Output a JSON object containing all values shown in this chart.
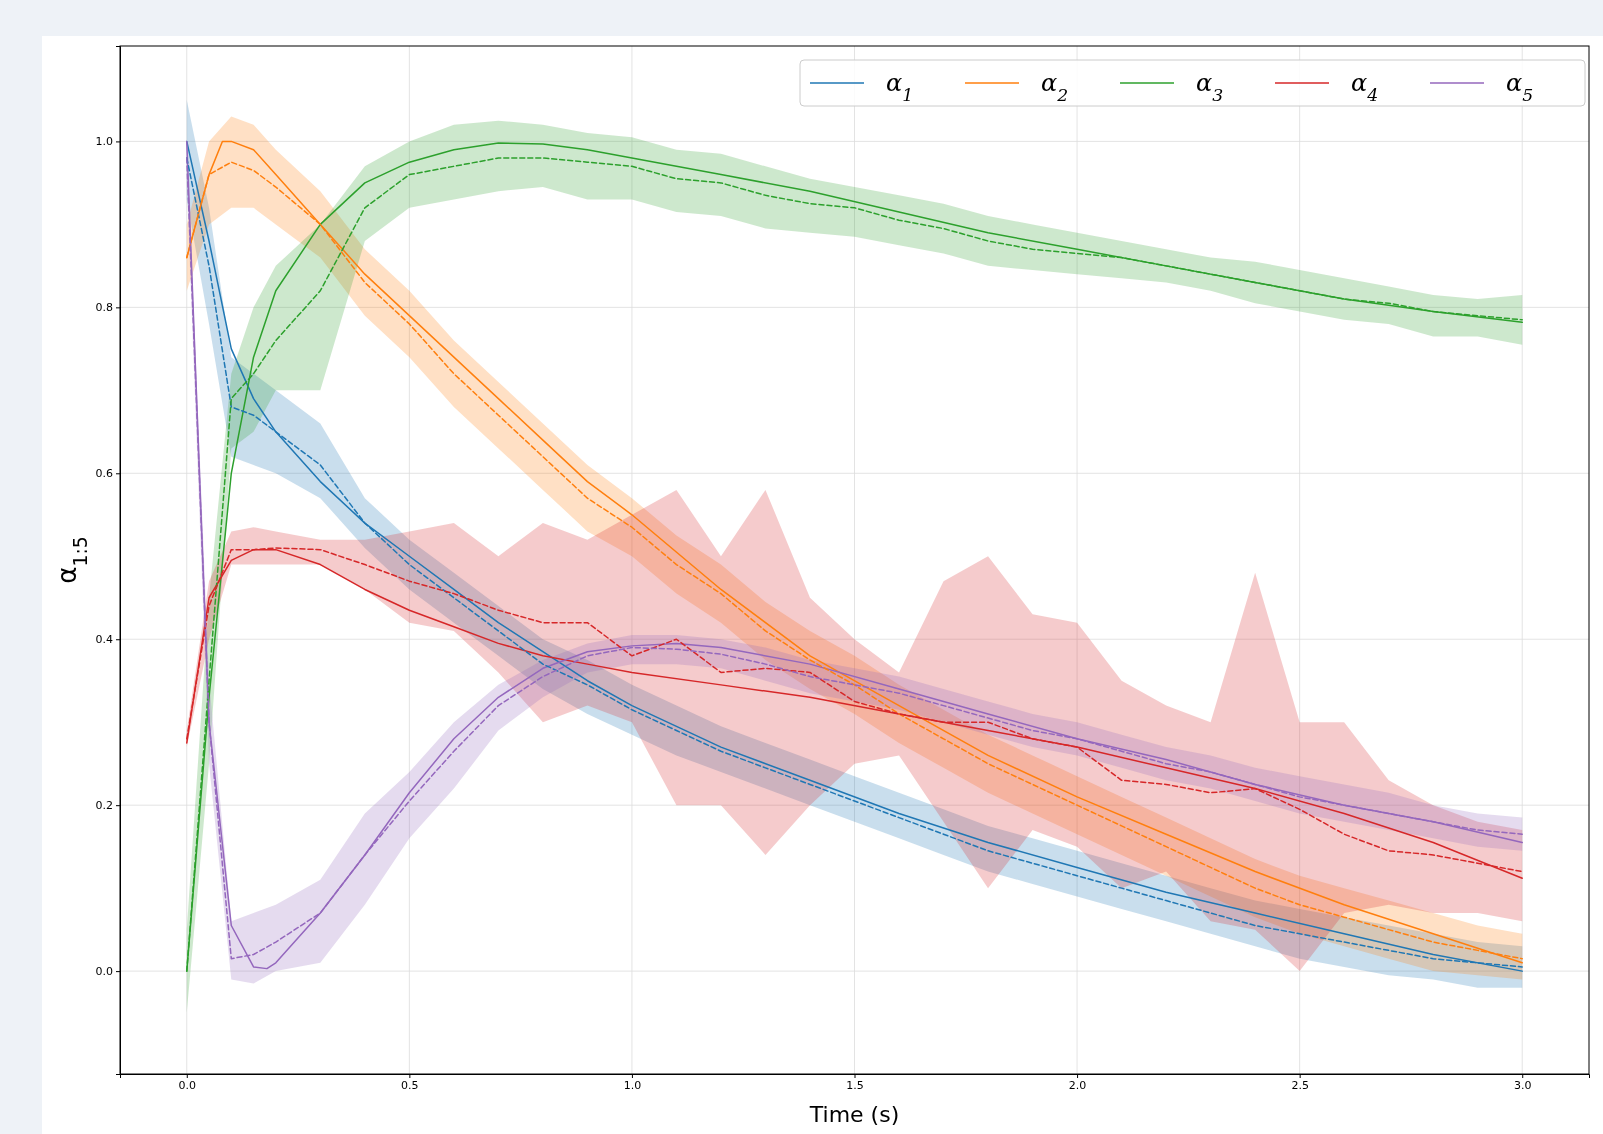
{
  "chart_data": {
    "type": "line",
    "xlabel": "Time (s)",
    "ylabel": "α$_{1:5}$",
    "xlim": [
      -0.15,
      3.15
    ],
    "ylim": [
      -0.124,
      1.115
    ],
    "xticks": [
      {
        "value": 0,
        "label": "0.0"
      },
      {
        "value": 0.5,
        "label": "0.5"
      },
      {
        "value": 1,
        "label": "1.0"
      },
      {
        "value": 1.5,
        "label": "1.5"
      },
      {
        "value": 2,
        "label": "2.0"
      },
      {
        "value": 2.5,
        "label": "2.5"
      },
      {
        "value": 3,
        "label": "3.0"
      }
    ],
    "yticks": [
      {
        "value": 0,
        "label": "0.0"
      },
      {
        "value": 0.2,
        "label": "0.2"
      },
      {
        "value": 0.4,
        "label": "0.4"
      },
      {
        "value": 0.6,
        "label": "0.6"
      },
      {
        "value": 0.8,
        "label": "0.8"
      },
      {
        "value": 1,
        "label": "1.0"
      }
    ],
    "grid": true,
    "legend": "top right",
    "marker": "none",
    "x": [
      0,
      0.05,
      0.1,
      0.15,
      0.2,
      0.3,
      0.4,
      0.5,
      0.6,
      0.7,
      0.8,
      0.9,
      1.0,
      1.1,
      1.2,
      1.3,
      1.4,
      1.5,
      1.6,
      1.7,
      1.8,
      1.9,
      2.0,
      2.1,
      2.2,
      2.3,
      2.4,
      2.5,
      2.6,
      2.7,
      2.8,
      2.9,
      3.0
    ],
    "series": [
      {
        "name": "α$_{1}$",
        "color": "#1f77b4",
        "line_style": "solid",
        "x": [
          0,
          0.05,
          0.1,
          0.15,
          0.2,
          0.3,
          0.4,
          0.5,
          0.6,
          0.7,
          0.8,
          0.9,
          1.0,
          1.2,
          1.4,
          1.6,
          1.8,
          2.0,
          2.2,
          2.4,
          2.6,
          2.8,
          3.0
        ],
        "values": [
          1.0,
          0.88,
          0.75,
          0.69,
          0.65,
          0.59,
          0.54,
          0.5,
          0.46,
          0.42,
          0.385,
          0.35,
          0.32,
          0.27,
          0.23,
          0.19,
          0.155,
          0.125,
          0.095,
          0.07,
          0.045,
          0.02,
          0.0
        ]
      },
      {
        "name": "α$_{2}$",
        "color": "#ff7f0e",
        "line_style": "solid",
        "x": [
          0,
          0.05,
          0.08,
          0.1,
          0.15,
          0.2,
          0.3,
          0.4,
          0.5,
          0.6,
          0.7,
          0.8,
          0.9,
          1.0,
          1.2,
          1.4,
          1.6,
          1.8,
          2.0,
          2.2,
          2.4,
          2.6,
          2.8,
          3.0
        ],
        "values": [
          0.86,
          0.96,
          1.0,
          1.0,
          0.99,
          0.96,
          0.9,
          0.84,
          0.79,
          0.74,
          0.69,
          0.64,
          0.59,
          0.55,
          0.46,
          0.38,
          0.32,
          0.26,
          0.21,
          0.165,
          0.12,
          0.08,
          0.045,
          0.01
        ]
      },
      {
        "name": "α$_{3}$",
        "color": "#2ca02c",
        "line_style": "solid",
        "x": [
          0,
          0.05,
          0.1,
          0.15,
          0.2,
          0.3,
          0.4,
          0.5,
          0.6,
          0.7,
          0.8,
          0.9,
          1.0,
          1.2,
          1.4,
          1.6,
          1.8,
          2.0,
          2.2,
          2.4,
          2.6,
          2.8,
          3.0
        ],
        "values": [
          0.0,
          0.33,
          0.6,
          0.74,
          0.82,
          0.9,
          0.95,
          0.975,
          0.99,
          0.998,
          0.997,
          0.99,
          0.98,
          0.96,
          0.94,
          0.915,
          0.89,
          0.87,
          0.85,
          0.83,
          0.81,
          0.795,
          0.782
        ]
      },
      {
        "name": "α$_{4}$",
        "color": "#d62728",
        "line_style": "solid",
        "x": [
          0,
          0.05,
          0.1,
          0.15,
          0.2,
          0.3,
          0.4,
          0.5,
          0.6,
          0.7,
          0.8,
          0.9,
          1.0,
          1.2,
          1.4,
          1.6,
          1.8,
          2.0,
          2.2,
          2.4,
          2.6,
          2.8,
          3.0
        ],
        "values": [
          0.275,
          0.45,
          0.495,
          0.508,
          0.508,
          0.49,
          0.46,
          0.435,
          0.415,
          0.395,
          0.38,
          0.37,
          0.36,
          0.345,
          0.33,
          0.31,
          0.29,
          0.27,
          0.245,
          0.22,
          0.19,
          0.155,
          0.112
        ]
      },
      {
        "name": "α$_{5}$",
        "color": "#9467bd",
        "line_style": "solid",
        "x": [
          0,
          0.05,
          0.1,
          0.15,
          0.18,
          0.2,
          0.3,
          0.4,
          0.5,
          0.6,
          0.7,
          0.8,
          0.9,
          1.0,
          1.1,
          1.2,
          1.4,
          1.6,
          1.8,
          2.0,
          2.2,
          2.4,
          2.6,
          2.8,
          3.0
        ],
        "values": [
          1.0,
          0.3,
          0.055,
          0.005,
          0.003,
          0.01,
          0.07,
          0.14,
          0.215,
          0.28,
          0.33,
          0.365,
          0.385,
          0.392,
          0.395,
          0.39,
          0.37,
          0.34,
          0.31,
          0.28,
          0.255,
          0.225,
          0.2,
          0.18,
          0.155
        ]
      },
      {
        "color": "#1f77b4",
        "line_style": "dashed",
        "values": [
          0.98,
          0.85,
          0.68,
          0.67,
          0.65,
          0.61,
          0.54,
          0.49,
          0.45,
          0.41,
          0.37,
          0.345,
          0.315,
          0.29,
          0.265,
          0.245,
          0.225,
          0.205,
          0.185,
          0.165,
          0.145,
          0.13,
          0.115,
          0.1,
          0.085,
          0.07,
          0.055,
          0.045,
          0.035,
          0.025,
          0.015,
          0.01,
          0.005
        ],
        "lower": [
          0.93,
          0.78,
          0.62,
          0.61,
          0.6,
          0.57,
          0.51,
          0.46,
          0.42,
          0.38,
          0.34,
          0.31,
          0.285,
          0.26,
          0.24,
          0.22,
          0.2,
          0.18,
          0.16,
          0.14,
          0.12,
          0.105,
          0.09,
          0.075,
          0.06,
          0.045,
          0.03,
          0.015,
          0.005,
          -0.005,
          -0.01,
          -0.02,
          -0.02
        ],
        "upper": [
          1.05,
          0.92,
          0.74,
          0.72,
          0.7,
          0.66,
          0.57,
          0.52,
          0.48,
          0.44,
          0.4,
          0.375,
          0.345,
          0.32,
          0.295,
          0.275,
          0.255,
          0.235,
          0.215,
          0.195,
          0.175,
          0.16,
          0.145,
          0.13,
          0.115,
          0.1,
          0.085,
          0.075,
          0.065,
          0.055,
          0.045,
          0.035,
          0.03
        ]
      },
      {
        "color": "#ff7f0e",
        "line_style": "dashed",
        "values": [
          0.86,
          0.96,
          0.975,
          0.965,
          0.945,
          0.9,
          0.83,
          0.78,
          0.72,
          0.67,
          0.62,
          0.57,
          0.535,
          0.49,
          0.455,
          0.41,
          0.375,
          0.345,
          0.31,
          0.28,
          0.25,
          0.225,
          0.2,
          0.175,
          0.15,
          0.125,
          0.1,
          0.08,
          0.065,
          0.05,
          0.035,
          0.025,
          0.015
        ],
        "lower": [
          0.82,
          0.9,
          0.92,
          0.92,
          0.9,
          0.86,
          0.79,
          0.74,
          0.68,
          0.63,
          0.58,
          0.53,
          0.5,
          0.455,
          0.42,
          0.375,
          0.34,
          0.31,
          0.275,
          0.245,
          0.215,
          0.19,
          0.165,
          0.14,
          0.115,
          0.09,
          0.065,
          0.045,
          0.03,
          0.015,
          0.0,
          -0.005,
          -0.01
        ],
        "upper": [
          0.9,
          1.0,
          1.03,
          1.02,
          0.99,
          0.94,
          0.87,
          0.82,
          0.76,
          0.71,
          0.66,
          0.61,
          0.57,
          0.525,
          0.49,
          0.445,
          0.41,
          0.38,
          0.345,
          0.315,
          0.285,
          0.26,
          0.235,
          0.21,
          0.185,
          0.16,
          0.135,
          0.115,
          0.1,
          0.085,
          0.07,
          0.055,
          0.045
        ]
      },
      {
        "color": "#2ca02c",
        "line_style": "dashed",
        "values": [
          0.0,
          0.35,
          0.69,
          0.72,
          0.76,
          0.82,
          0.92,
          0.96,
          0.97,
          0.98,
          0.98,
          0.975,
          0.97,
          0.955,
          0.95,
          0.935,
          0.925,
          0.92,
          0.905,
          0.895,
          0.88,
          0.87,
          0.865,
          0.86,
          0.85,
          0.84,
          0.83,
          0.82,
          0.81,
          0.805,
          0.795,
          0.79,
          0.785
        ],
        "lower": [
          -0.05,
          0.25,
          0.63,
          0.65,
          0.7,
          0.7,
          0.88,
          0.92,
          0.93,
          0.94,
          0.945,
          0.93,
          0.93,
          0.915,
          0.91,
          0.895,
          0.89,
          0.885,
          0.875,
          0.865,
          0.85,
          0.845,
          0.84,
          0.835,
          0.83,
          0.82,
          0.805,
          0.795,
          0.785,
          0.78,
          0.765,
          0.765,
          0.755
        ],
        "upper": [
          0.05,
          0.45,
          0.72,
          0.8,
          0.85,
          0.9,
          0.97,
          1.0,
          1.02,
          1.025,
          1.02,
          1.01,
          1.005,
          0.99,
          0.985,
          0.97,
          0.955,
          0.945,
          0.935,
          0.925,
          0.91,
          0.9,
          0.89,
          0.88,
          0.87,
          0.86,
          0.855,
          0.845,
          0.835,
          0.825,
          0.815,
          0.81,
          0.815
        ]
      },
      {
        "color": "#d62728",
        "line_style": "dashed",
        "values": [
          0.28,
          0.44,
          0.508,
          0.508,
          0.51,
          0.508,
          0.49,
          0.47,
          0.455,
          0.435,
          0.42,
          0.42,
          0.38,
          0.4,
          0.36,
          0.365,
          0.36,
          0.325,
          0.31,
          0.3,
          0.3,
          0.28,
          0.27,
          0.23,
          0.225,
          0.215,
          0.22,
          0.195,
          0.165,
          0.145,
          0.14,
          0.13,
          0.12
        ],
        "lower": [
          0.27,
          0.4,
          0.49,
          0.49,
          0.49,
          0.49,
          0.46,
          0.42,
          0.41,
          0.36,
          0.3,
          0.32,
          0.3,
          0.2,
          0.2,
          0.14,
          0.2,
          0.25,
          0.26,
          0.18,
          0.1,
          0.17,
          0.15,
          0.1,
          0.12,
          0.06,
          0.05,
          0.0,
          0.07,
          0.08,
          0.07,
          0.07,
          0.06
        ],
        "upper": [
          0.29,
          0.47,
          0.53,
          0.535,
          0.53,
          0.52,
          0.52,
          0.53,
          0.54,
          0.5,
          0.54,
          0.52,
          0.55,
          0.58,
          0.5,
          0.58,
          0.45,
          0.4,
          0.36,
          0.47,
          0.5,
          0.43,
          0.42,
          0.35,
          0.32,
          0.3,
          0.48,
          0.3,
          0.3,
          0.23,
          0.2,
          0.18,
          0.17
        ]
      },
      {
        "color": "#9467bd",
        "line_style": "dashed",
        "values": [
          0.98,
          0.3,
          0.015,
          0.02,
          0.035,
          0.07,
          0.14,
          0.205,
          0.265,
          0.32,
          0.355,
          0.38,
          0.39,
          0.388,
          0.382,
          0.37,
          0.355,
          0.345,
          0.335,
          0.32,
          0.305,
          0.29,
          0.28,
          0.265,
          0.25,
          0.24,
          0.225,
          0.21,
          0.2,
          0.19,
          0.18,
          0.17,
          0.165
        ],
        "lower": [
          0.95,
          0.25,
          -0.01,
          -0.015,
          0.0,
          0.01,
          0.08,
          0.16,
          0.22,
          0.29,
          0.33,
          0.36,
          0.37,
          0.37,
          0.365,
          0.35,
          0.335,
          0.325,
          0.315,
          0.3,
          0.285,
          0.27,
          0.26,
          0.245,
          0.23,
          0.22,
          0.205,
          0.19,
          0.18,
          0.17,
          0.16,
          0.15,
          0.145
        ],
        "upper": [
          1.0,
          0.35,
          0.06,
          0.07,
          0.08,
          0.11,
          0.19,
          0.24,
          0.3,
          0.345,
          0.375,
          0.395,
          0.405,
          0.405,
          0.4,
          0.39,
          0.375,
          0.365,
          0.355,
          0.34,
          0.325,
          0.31,
          0.3,
          0.285,
          0.27,
          0.26,
          0.245,
          0.235,
          0.225,
          0.215,
          0.2,
          0.19,
          0.185
        ]
      }
    ]
  }
}
